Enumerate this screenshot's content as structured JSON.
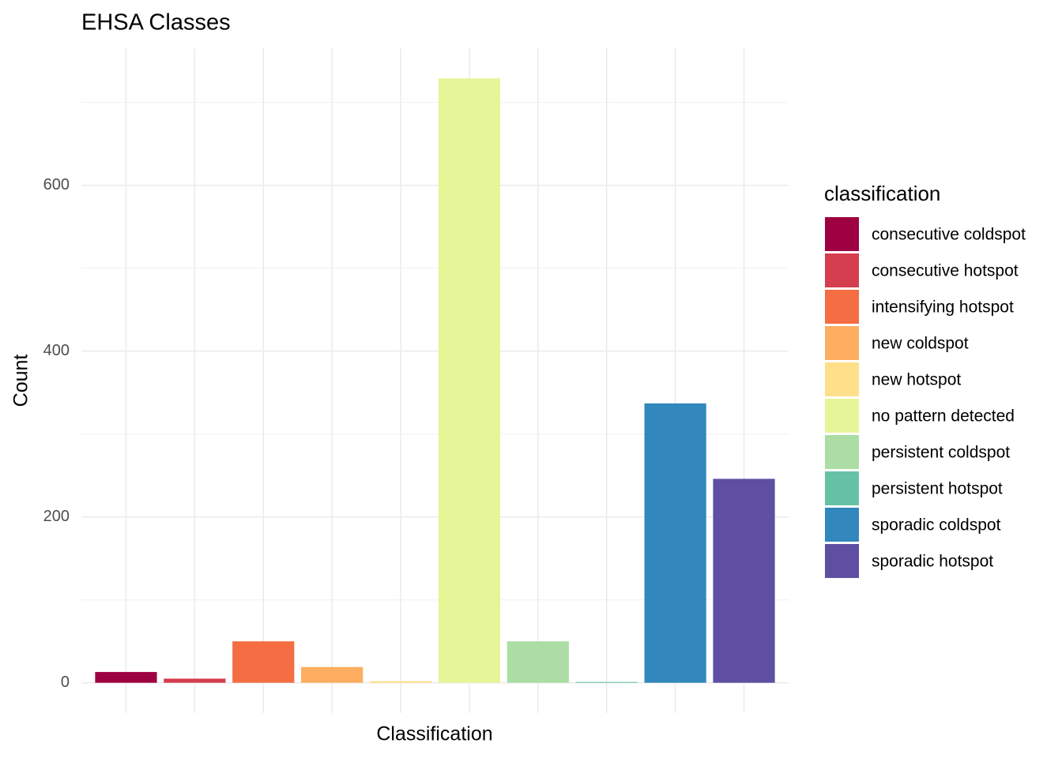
{
  "chart_data": {
    "type": "bar",
    "title": "EHSA Classes",
    "x_label": "Classification",
    "y_label": "Count",
    "legend_title": "classification",
    "categories": [
      "consecutive coldspot",
      "consecutive hotspot",
      "intensifying hotspot",
      "new coldspot",
      "new hotspot",
      "no pattern detected",
      "persistent coldspot",
      "persistent hotspot",
      "sporadic coldspot",
      "sporadic hotspot"
    ],
    "values": [
      13,
      5,
      50,
      19,
      2,
      729,
      50,
      1,
      337,
      246
    ],
    "colors": [
      "#9E0142",
      "#D53E4F",
      "#F46D43",
      "#FDAE61",
      "#FEE08B",
      "#E6F598",
      "#ABDDA4",
      "#66C2A5",
      "#3288BD",
      "#5E4FA2"
    ],
    "ylim": [
      -36.45,
      765.45
    ],
    "yticks": [
      0,
      200,
      400,
      600
    ],
    "y_minor_grid": [
      100,
      300,
      500,
      700
    ],
    "grid": true,
    "legend": "right"
  }
}
